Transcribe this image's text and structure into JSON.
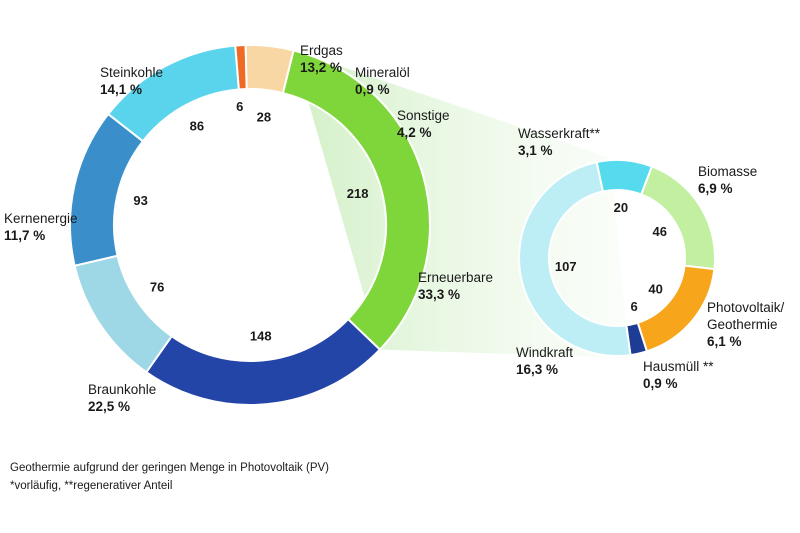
{
  "chart_data": [
    {
      "type": "donut",
      "series": [
        {
          "label": "Erneuerbare",
          "value": 218,
          "share": "33,3 %",
          "color": "#7fd63a"
        },
        {
          "label": "Braunkohle",
          "value": 148,
          "share": "22,5 %",
          "color": "#2445a8"
        },
        {
          "label": "Kernenergie",
          "value": 76,
          "share": "11,7 %",
          "color": "#9ed7e6"
        },
        {
          "label": "Steinkohle",
          "value": 93,
          "share": "14,1 %",
          "color": "#3a8fcb"
        },
        {
          "label": "Erdgas",
          "value": 86,
          "share": "13,2 %",
          "color": "#5ad4ec"
        },
        {
          "label": "Mineralöl",
          "value": 6,
          "share": "0,9 %",
          "color": "#ef6a25"
        },
        {
          "label": "Sonstige",
          "value": 28,
          "share": "4,2 %",
          "color": "#f9d7a4"
        }
      ]
    },
    {
      "type": "donut",
      "series": [
        {
          "label": "Wasserkraft**",
          "value": 20,
          "share": "3,1 %",
          "color": "#56dbee"
        },
        {
          "label": "Biomasse",
          "value": 46,
          "share": "6,9 %",
          "color": "#c3f0a0"
        },
        {
          "label": "Photovoltaik/ Geothermie",
          "value": 40,
          "share": "6,1 %",
          "color": "#f7a61c"
        },
        {
          "label": "Hausmüll **",
          "value": 6,
          "share": "0,9 %",
          "color": "#1d3c93"
        },
        {
          "label": "Windkraft",
          "value": 107,
          "share": "16,3 %",
          "color": "#bdeef5"
        }
      ]
    }
  ],
  "footnotes": [
    "Geothermie aufgrund der geringen Menge in Photovoltaik (PV)",
    "*vorläufig, **regenerativer Anteil"
  ]
}
